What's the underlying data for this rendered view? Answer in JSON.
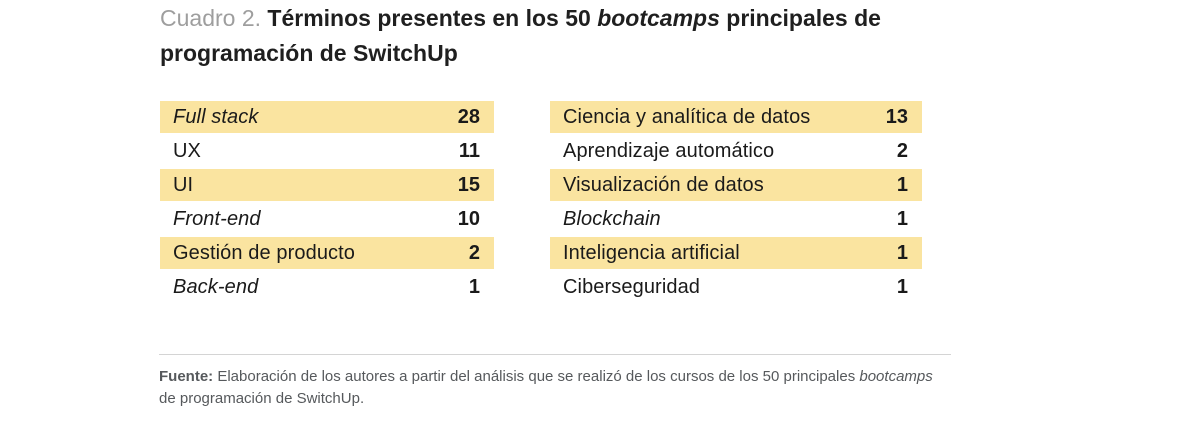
{
  "title": {
    "label": "Cuadro 2. ",
    "line1_bold_a": "Términos presentes en los 50 ",
    "line1_italic": "bootcamps",
    "line1_bold_b": " principales de",
    "line2": "programación de SwitchUp"
  },
  "table": {
    "highlight_color": "#fae4a0",
    "text_color": "#1a1a1a",
    "left_rows": [
      {
        "term": "Full stack",
        "count": "28",
        "highlight": true,
        "italic": true
      },
      {
        "term": "UX",
        "count": "11",
        "highlight": false,
        "italic": false
      },
      {
        "term": "UI",
        "count": "15",
        "highlight": true,
        "italic": false
      },
      {
        "term": "Front-end",
        "count": "10",
        "highlight": false,
        "italic": true
      },
      {
        "term": "Gestión de producto",
        "count": "2",
        "highlight": true,
        "italic": false
      },
      {
        "term": "Back-end",
        "count": "1",
        "highlight": false,
        "italic": true
      }
    ],
    "right_rows": [
      {
        "term": "Ciencia y analítica de datos",
        "count": "13",
        "highlight": true,
        "italic": false
      },
      {
        "term": "Aprendizaje automático",
        "count": "2",
        "highlight": false,
        "italic": false
      },
      {
        "term": "Visualización de datos",
        "count": "1",
        "highlight": true,
        "italic": false
      },
      {
        "term": "Blockchain",
        "count": "1",
        "highlight": false,
        "italic": true
      },
      {
        "term": "Inteligencia artificial",
        "count": "1",
        "highlight": true,
        "italic": false
      },
      {
        "term": "Ciberseguridad",
        "count": "1",
        "highlight": false,
        "italic": false
      }
    ]
  },
  "footer": {
    "source_label": "Fuente:",
    "line1_text": " Elaboración de los autores a partir del análisis que se realizó de los cursos de los 50 principales ",
    "line1_italic": "bootcamps",
    "line2_text": "de programación de SwitchUp."
  }
}
